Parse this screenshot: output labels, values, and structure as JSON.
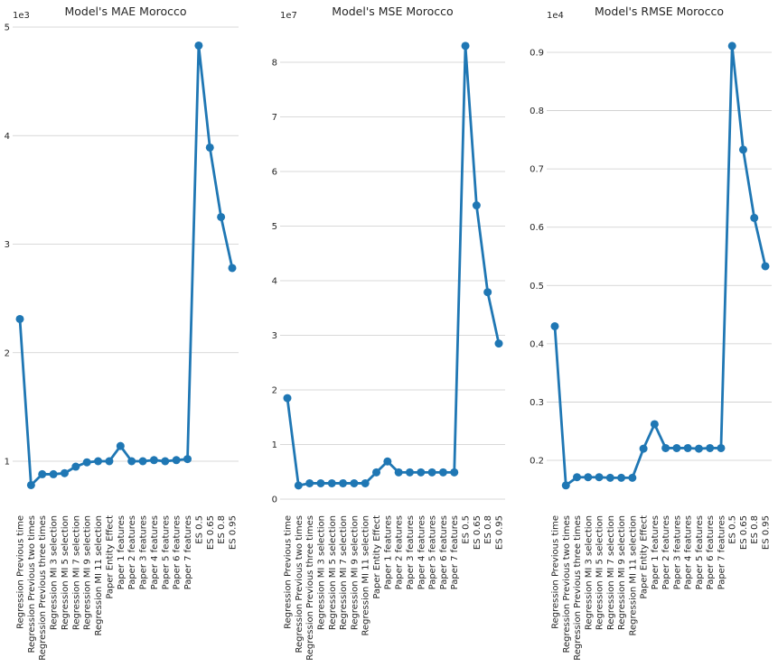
{
  "chart_data": [
    {
      "type": "line",
      "title": "Model's MAE Morocco",
      "xlabel": "",
      "ylabel": "",
      "y_offset_label": "1e3",
      "yticks": [
        1,
        2,
        3,
        4,
        5
      ],
      "ylim": [
        0.55,
        5.0
      ],
      "grid": true,
      "categories": [
        "Regression Previous time",
        "Regression Previous two times",
        "Regression Previous three times",
        "Regression MI 3 selection",
        "Regression MI 5 selection",
        "Regression MI 7 selection",
        "Regression MI 9 selection",
        "Regression MI 11 selection",
        "Paper Entity Effect",
        "Paper 1 features",
        "Paper 2 features",
        "Paper 3 features",
        "Paper 4 features",
        "Paper 5 features",
        "Paper 6 features",
        "Paper 7 features",
        "ES 0.5",
        "ES 0.65",
        "ES 0.8",
        "ES 0.95"
      ],
      "series": [
        {
          "values": [
            2.31,
            0.78,
            0.88,
            0.88,
            0.89,
            0.95,
            0.99,
            1.0,
            1.0,
            1.14,
            1.0,
            1.0,
            1.01,
            1.0,
            1.01,
            1.02,
            4.83,
            3.89,
            3.25,
            2.78
          ]
        }
      ]
    },
    {
      "type": "line",
      "title": "Model's MSE Morocco",
      "xlabel": "",
      "ylabel": "",
      "y_offset_label": "1e7",
      "yticks": [
        0,
        1,
        2,
        3,
        4,
        5,
        6,
        7,
        8
      ],
      "ylim": [
        -0.2,
        8.4
      ],
      "grid": true,
      "categories": [
        "Regression Previous time",
        "Regression Previous two times",
        "Regression Previous three times",
        "Regression MI 3 selection",
        "Regression MI 5 selection",
        "Regression MI 7 selection",
        "Regression MI 9 selection",
        "Regression MI 11 selection",
        "Paper Entity Effect",
        "Paper 1 features",
        "Paper 2 features",
        "Paper 3 features",
        "Paper 4 features",
        "Paper 5 features",
        "Paper 6 features",
        "Paper 7 features",
        "ES 0.5",
        "ES 0.65",
        "ES 0.8",
        "ES 0.95"
      ],
      "series": [
        {
          "values": [
            1.85,
            0.25,
            0.29,
            0.29,
            0.29,
            0.29,
            0.29,
            0.29,
            0.49,
            0.69,
            0.49,
            0.49,
            0.49,
            0.49,
            0.49,
            0.49,
            8.3,
            5.38,
            3.79,
            2.85
          ]
        }
      ]
    },
    {
      "type": "line",
      "title": "Model's RMSE Morocco",
      "xlabel": "",
      "ylabel": "",
      "y_offset_label": "1e4",
      "yticks": [
        0.2,
        0.3,
        0.4,
        0.5,
        0.6,
        0.7,
        0.8,
        0.9
      ],
      "ylim": [
        0.12,
        0.95
      ],
      "grid": true,
      "categories": [
        "Regression Previous time",
        "Regression Previous two times",
        "Regression Previous three times",
        "Regression MI 3 selection",
        "Regression MI 5 selection",
        "Regression MI 7 selection",
        "Regression MI 9 selection",
        "Regression MI 11 selection",
        "Paper Entity Effect",
        "Paper 1 features",
        "Paper 2 features",
        "Paper 3 features",
        "Paper 4 features",
        "Paper 5 features",
        "Paper 6 features",
        "Paper 7 features",
        "ES 0.5",
        "ES 0.65",
        "ES 0.8",
        "ES 0.95"
      ],
      "series": [
        {
          "values": [
            0.43,
            0.157,
            0.171,
            0.171,
            0.171,
            0.17,
            0.17,
            0.17,
            0.22,
            0.262,
            0.221,
            0.221,
            0.221,
            0.22,
            0.221,
            0.221,
            0.911,
            0.733,
            0.616,
            0.533
          ]
        }
      ]
    }
  ],
  "colors": {
    "line": "#1f77b4",
    "grid": "#cccccc",
    "text": "#262626"
  }
}
